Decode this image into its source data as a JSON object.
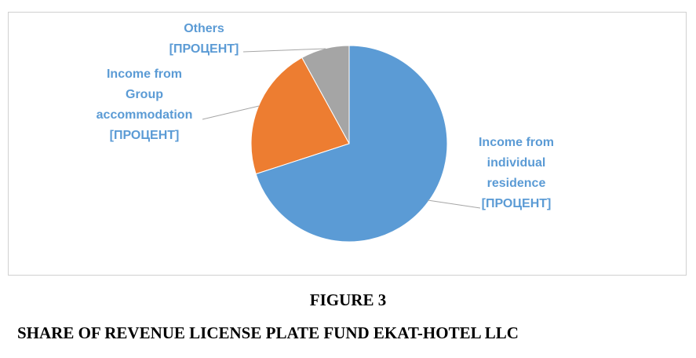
{
  "chart_data": {
    "type": "pie",
    "categories": [
      "Income from individual residence",
      "Income from Group accommodation",
      "Others"
    ],
    "values": [
      70,
      22,
      8
    ],
    "value_labels": [
      "[ПРОЦЕНТ]",
      "[ПРОЦЕНТ]",
      "[ПРОЦЕНТ]"
    ],
    "colors": [
      "#5b9bd5",
      "#ed7d31",
      "#a5a5a5"
    ]
  },
  "caption": {
    "figure": "FIGURE 3",
    "title": "SHARE OF REVENUE LICENSE PLATE FUND EKAT-HOTEL LLC"
  }
}
